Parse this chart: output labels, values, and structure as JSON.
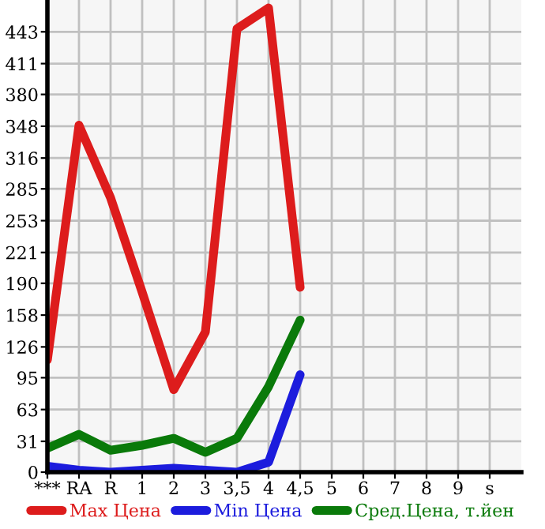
{
  "chart_data": {
    "type": "line",
    "categories": [
      "***",
      "RA",
      "R",
      "1",
      "2",
      "3",
      "3,5",
      "4",
      "4,5",
      "5",
      "6",
      "7",
      "8",
      "9",
      "s"
    ],
    "series": [
      {
        "name": "Max Цена",
        "color": "#dd1c1c",
        "values": [
          113,
          349,
          276,
          181,
          83,
          141,
          446,
          467,
          186,
          null,
          null,
          null,
          null,
          null,
          null
        ]
      },
      {
        "name": "Min Цена",
        "color": "#1c1cdd",
        "values": [
          6,
          2,
          0,
          2,
          4,
          2,
          0,
          10,
          98,
          null,
          null,
          null,
          null,
          null,
          null
        ]
      },
      {
        "name": "Сред.Цена, т.йен",
        "color": "#0a7a0a",
        "values": [
          24,
          38,
          22,
          27,
          34,
          20,
          34,
          86,
          153,
          null,
          null,
          null,
          null,
          null,
          null
        ]
      }
    ],
    "ylim": [
      0,
      475
    ],
    "yticks": [
      0,
      31,
      63,
      95,
      126,
      158,
      190,
      221,
      253,
      285,
      316,
      348,
      380,
      411,
      443
    ],
    "grid": true,
    "legend": "bottom",
    "marker": "none",
    "line_style": "solid"
  }
}
